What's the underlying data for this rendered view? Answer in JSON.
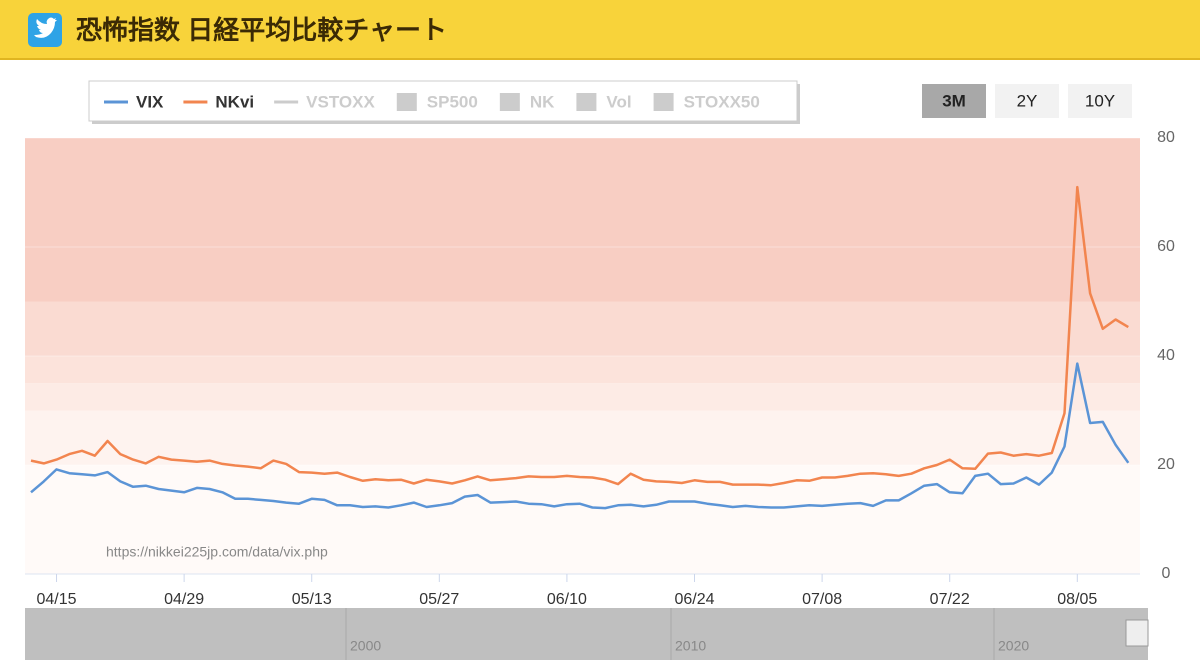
{
  "header": {
    "title": "恐怖指数 日経平均比較チャート"
  },
  "range_buttons": [
    "3M",
    "2Y",
    "10Y"
  ],
  "active_button_index": 0,
  "legend_inactive": [
    {
      "name": "VSTOXX",
      "symbol": "line"
    },
    {
      "name": "SP500",
      "symbol": "box"
    },
    {
      "name": "NK",
      "symbol": "box"
    },
    {
      "name": "Vol",
      "symbol": "box"
    },
    {
      "name": "STOXX50",
      "symbol": "box"
    }
  ],
  "navigator": {
    "labels": [
      "2000",
      "2010",
      "2020"
    ]
  },
  "chart_data": {
    "type": "line",
    "annotation": "https://nikkei225jp.com/data/vix.php",
    "categories": [
      null,
      null,
      "04/15",
      null,
      null,
      null,
      null,
      null,
      null,
      null,
      null,
      null,
      "04/29",
      null,
      null,
      null,
      null,
      null,
      null,
      null,
      null,
      null,
      "05/13",
      null,
      null,
      null,
      null,
      null,
      null,
      null,
      null,
      null,
      "05/27",
      null,
      null,
      null,
      null,
      null,
      null,
      null,
      null,
      null,
      "06/10",
      null,
      null,
      null,
      null,
      null,
      null,
      null,
      null,
      null,
      "06/24",
      null,
      null,
      null,
      null,
      null,
      null,
      null,
      null,
      null,
      "07/08",
      null,
      null,
      null,
      null,
      null,
      null,
      null,
      null,
      null,
      "07/22",
      null,
      null,
      null,
      null,
      null,
      null,
      null,
      null,
      null,
      "08/05",
      null,
      null,
      null,
      null
    ],
    "series": [
      {
        "name": "VIX",
        "color": "#5b94d6",
        "values": [
          15.0,
          17.0,
          19.2,
          18.5,
          18.3,
          18.1,
          18.7,
          17.0,
          16.0,
          16.2,
          15.6,
          15.3,
          15.0,
          15.8,
          15.6,
          15.0,
          13.8,
          13.8,
          13.6,
          13.4,
          13.1,
          12.9,
          13.8,
          13.6,
          12.6,
          12.6,
          12.3,
          12.4,
          12.2,
          12.6,
          13.1,
          12.3,
          12.6,
          13.0,
          14.2,
          14.5,
          13.1,
          13.2,
          13.3,
          12.9,
          12.8,
          12.4,
          12.8,
          12.9,
          12.2,
          12.1,
          12.6,
          12.7,
          12.4,
          12.7,
          13.3,
          13.3,
          13.3,
          12.9,
          12.6,
          12.3,
          12.5,
          12.3,
          12.2,
          12.2,
          12.4,
          12.6,
          12.5,
          12.7,
          12.9,
          13.0,
          12.5,
          13.5,
          13.5,
          14.8,
          16.2,
          16.5,
          15.0,
          14.8,
          18.0,
          18.4,
          16.5,
          16.6,
          17.7,
          16.4,
          18.6,
          23.4,
          38.6,
          27.7,
          27.9,
          23.7,
          20.4
        ]
      },
      {
        "name": "NKvi",
        "color": "#f2854f",
        "values": [
          20.8,
          20.3,
          21.0,
          22.0,
          22.6,
          21.7,
          24.4,
          22.0,
          21.0,
          20.3,
          21.5,
          21.0,
          20.8,
          20.6,
          20.8,
          20.2,
          19.9,
          19.7,
          19.4,
          20.8,
          20.2,
          18.7,
          18.6,
          18.4,
          18.6,
          17.8,
          17.1,
          17.4,
          17.2,
          17.3,
          16.6,
          17.3,
          17.0,
          16.6,
          17.2,
          17.9,
          17.2,
          17.4,
          17.6,
          17.9,
          17.8,
          17.8,
          18.0,
          17.8,
          17.7,
          17.3,
          16.5,
          18.4,
          17.3,
          17.0,
          16.9,
          16.7,
          17.2,
          16.9,
          16.9,
          16.4,
          16.4,
          16.4,
          16.3,
          16.7,
          17.2,
          17.1,
          17.7,
          17.7,
          18.0,
          18.4,
          18.5,
          18.3,
          18.0,
          18.4,
          19.4,
          20.0,
          21.0,
          19.4,
          19.3,
          22.1,
          22.3,
          21.7,
          22.0,
          21.7,
          22.2,
          29.5,
          71.0,
          51.5,
          45.0,
          46.7,
          45.3
        ]
      }
    ],
    "ylim": [
      0,
      80
    ],
    "yticks": [
      0,
      20,
      40,
      60,
      80
    ],
    "bands": [
      {
        "from": 0,
        "to": 20,
        "color": "#fffaf8"
      },
      {
        "from": 20,
        "to": 30,
        "color": "#fef3ef"
      },
      {
        "from": 30,
        "to": 35,
        "color": "#fdebe5"
      },
      {
        "from": 35,
        "to": 40,
        "color": "#fce3db"
      },
      {
        "from": 40,
        "to": 50,
        "color": "#fadbd2"
      },
      {
        "from": 50,
        "to": 80,
        "color": "#f8cec3"
      }
    ]
  }
}
